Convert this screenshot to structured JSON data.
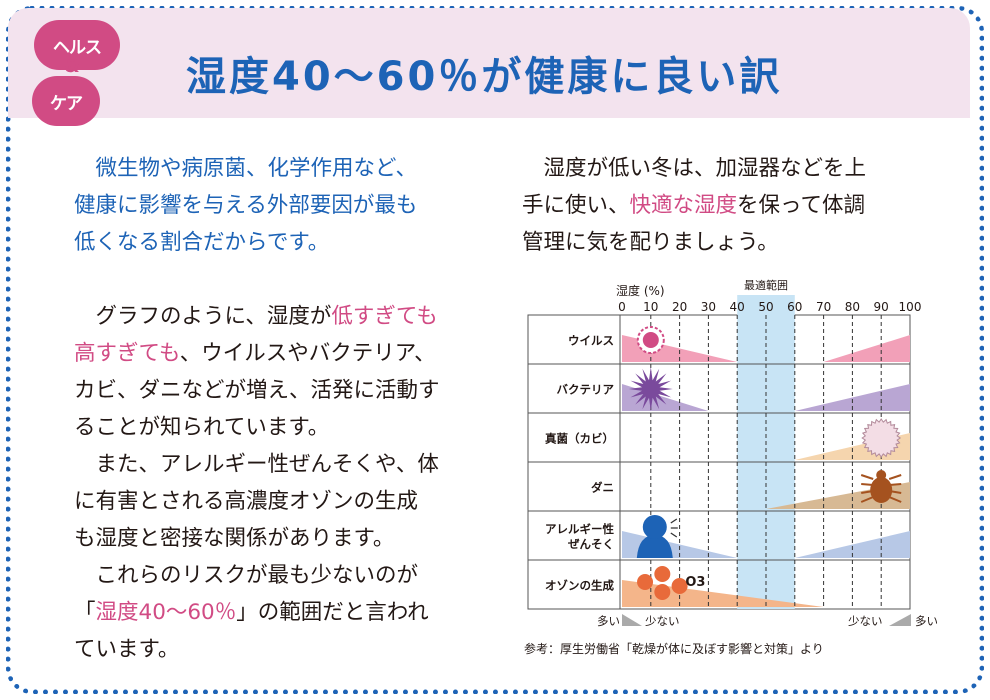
{
  "header": {
    "badge_line1": "ヘルス",
    "badge_amp": "&",
    "badge_line2": "ケア",
    "title": "湿度40～60％が健康に良い訳"
  },
  "left": {
    "p1_l1": "微生物や病原菌、化学作用など、",
    "p1_l2": "健康に影響を与える外部要因が最も",
    "p1_l3": "低くなる割合だからです。",
    "p2_l1_a": "グラフのように、湿度が",
    "p2_l1_b": "低すぎても",
    "p2_l2_a": "高すぎても",
    "p2_l2_b": "、ウイルスやバクテリア、",
    "p2_l3": "カビ、ダニなどが増え、活発に活動す",
    "p2_l4": "ることが知られています。",
    "p3_l1": "また、アレルギー性ぜんそくや、体",
    "p3_l2": "に有害とされる高濃度オゾンの生成",
    "p3_l3": "も湿度と密接な関係があります。",
    "p4_l1": "これらのリスクが最も少ないのが",
    "p4_l2_a": "「",
    "p4_l2_b": "湿度40～60％",
    "p4_l2_c": "」の範囲だと言われ",
    "p4_l3": "ています。"
  },
  "right": {
    "l1": "湿度が低い冬は、加湿器などを上",
    "l2_a": "手に使い、",
    "l2_b": "快適な湿度",
    "l2_c": "を保って体調",
    "l3": "管理に気を配りましょう。"
  },
  "chart_data": {
    "type": "area",
    "x_label": "湿度 (%)",
    "x_ticks": [
      0,
      10,
      20,
      30,
      40,
      50,
      60,
      70,
      80,
      90,
      100
    ],
    "optimal_range": [
      40,
      60
    ],
    "optimal_label": "最適範囲",
    "rows": [
      {
        "label": "ウイルス",
        "color": "#f2a0b8",
        "left_range": [
          0,
          40
        ],
        "right_range": [
          70,
          100
        ]
      },
      {
        "label": "バクテリア",
        "color": "#b9a6d3",
        "left_range": [
          0,
          30
        ],
        "right_range": [
          60,
          100
        ]
      },
      {
        "label": "真菌（カビ）",
        "color": "#f5d5ae",
        "left_range": null,
        "right_range": [
          60,
          100
        ]
      },
      {
        "label": "ダニ",
        "color": "#d7b994",
        "left_range": null,
        "right_range": [
          50,
          100
        ]
      },
      {
        "label": "アレルギー性\nぜんそく",
        "color": "#b7c8e6",
        "left_range": [
          0,
          40
        ],
        "right_range": [
          60,
          100
        ]
      },
      {
        "label": "オゾンの生成",
        "color": "#f4b58a",
        "left_range": [
          0,
          70
        ],
        "right_range": null
      }
    ],
    "bottom_left": {
      "more": "多い",
      "less": "少ない"
    },
    "bottom_right": {
      "less": "少ない",
      "more": "多い"
    },
    "o3_label": "O3",
    "colors": {
      "optimal": "#c8e4f5",
      "virus": "#d14b84",
      "bacteria": "#7a4a9c",
      "mold": "#f3dde5",
      "mite": "#a5521f",
      "person": "#1d63b6",
      "ozone": "#e86a3a"
    }
  },
  "source": "参考：厚生労働省「乾燥が体に及ぼす影響と対策」より"
}
